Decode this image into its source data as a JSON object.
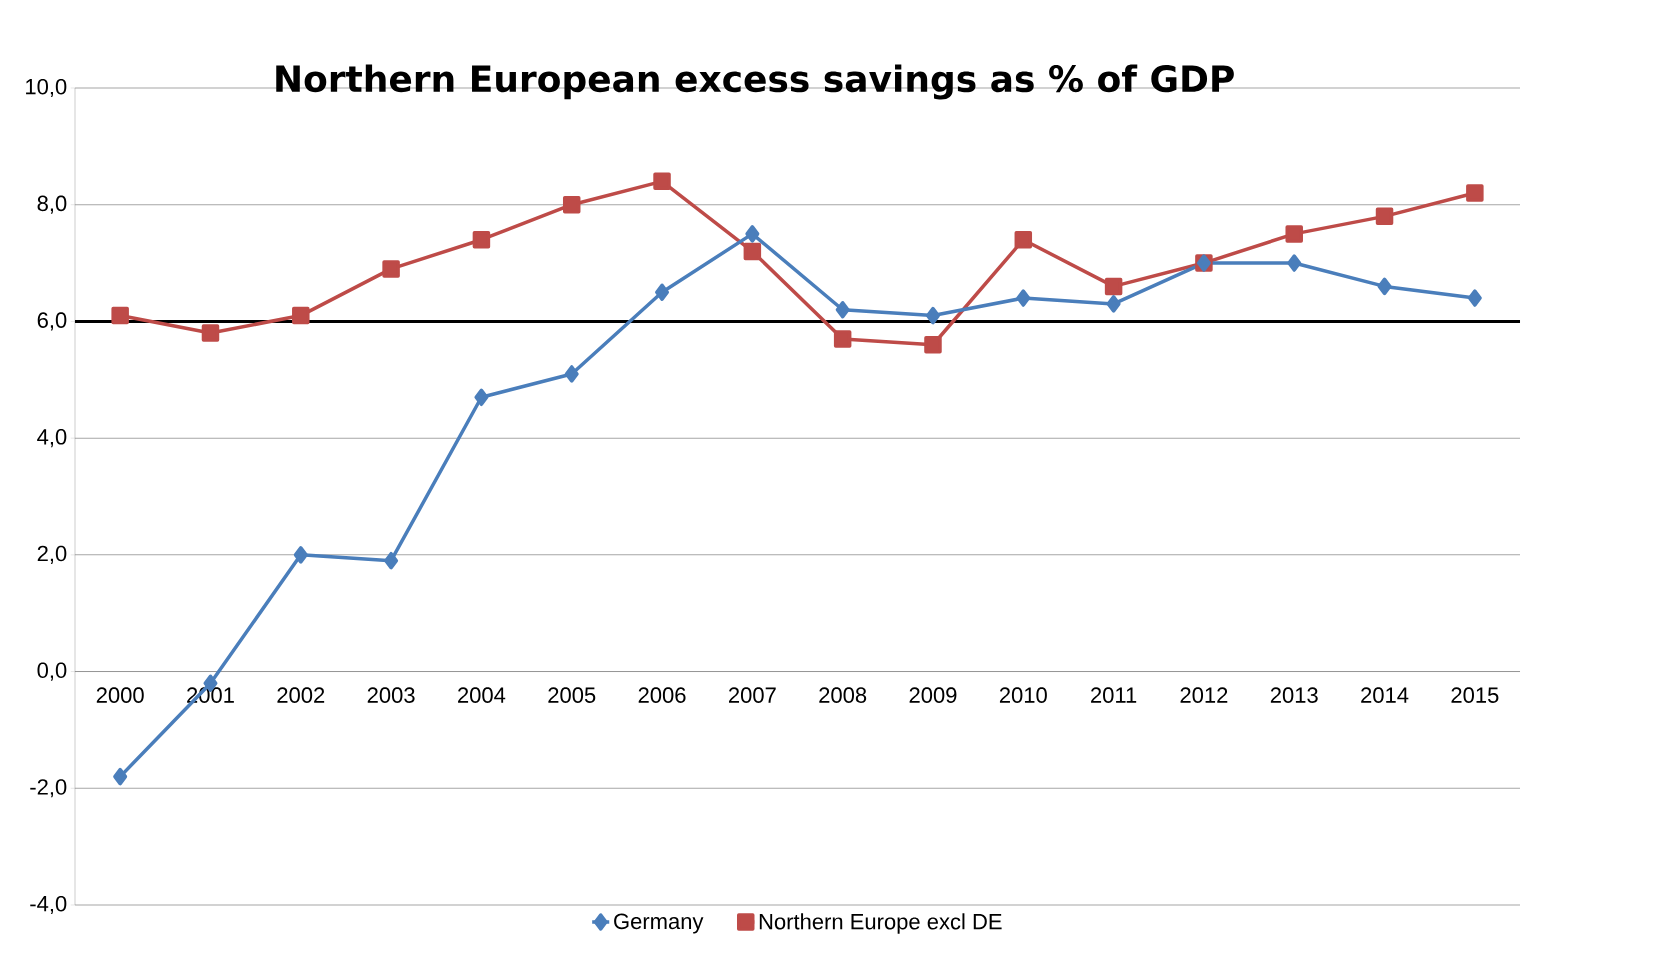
{
  "chart_data": {
    "type": "line",
    "title": "Northern European excess savings as % of GDP",
    "categories": [
      "2000",
      "2001",
      "2002",
      "2003",
      "2004",
      "2005",
      "2006",
      "2007",
      "2008",
      "2009",
      "2010",
      "2011",
      "2012",
      "2013",
      "2014",
      "2015"
    ],
    "series": [
      {
        "name": "Germany",
        "color": "#4a7ebb",
        "marker": "diamond",
        "values": [
          -1.8,
          -0.2,
          2.0,
          1.9,
          4.7,
          5.1,
          6.5,
          7.5,
          6.2,
          6.1,
          6.4,
          6.3,
          7.0,
          7.0,
          6.6,
          6.4
        ]
      },
      {
        "name": "Northern Europe excl DE",
        "color": "#be4b48",
        "marker": "square",
        "values": [
          6.1,
          5.8,
          6.1,
          6.9,
          7.4,
          8.0,
          8.4,
          7.2,
          5.7,
          5.6,
          7.4,
          6.6,
          7.0,
          7.5,
          7.8,
          8.2
        ]
      }
    ],
    "ylim": [
      -4,
      10
    ],
    "yticks": [
      {
        "value": -4,
        "label": "-4,0"
      },
      {
        "value": -2,
        "label": "-2,0"
      },
      {
        "value": 0,
        "label": "0,0"
      },
      {
        "value": 2,
        "label": "2,0"
      },
      {
        "value": 4,
        "label": "4,0"
      },
      {
        "value": 6,
        "label": "6,0"
      },
      {
        "value": 8,
        "label": "8,0"
      },
      {
        "value": 10,
        "label": "10,0"
      }
    ],
    "ref_lines": [
      {
        "axis": "y",
        "value": 6,
        "color": "#000000"
      }
    ],
    "grid": "y",
    "legend": "bottom",
    "line_style": "solid"
  }
}
